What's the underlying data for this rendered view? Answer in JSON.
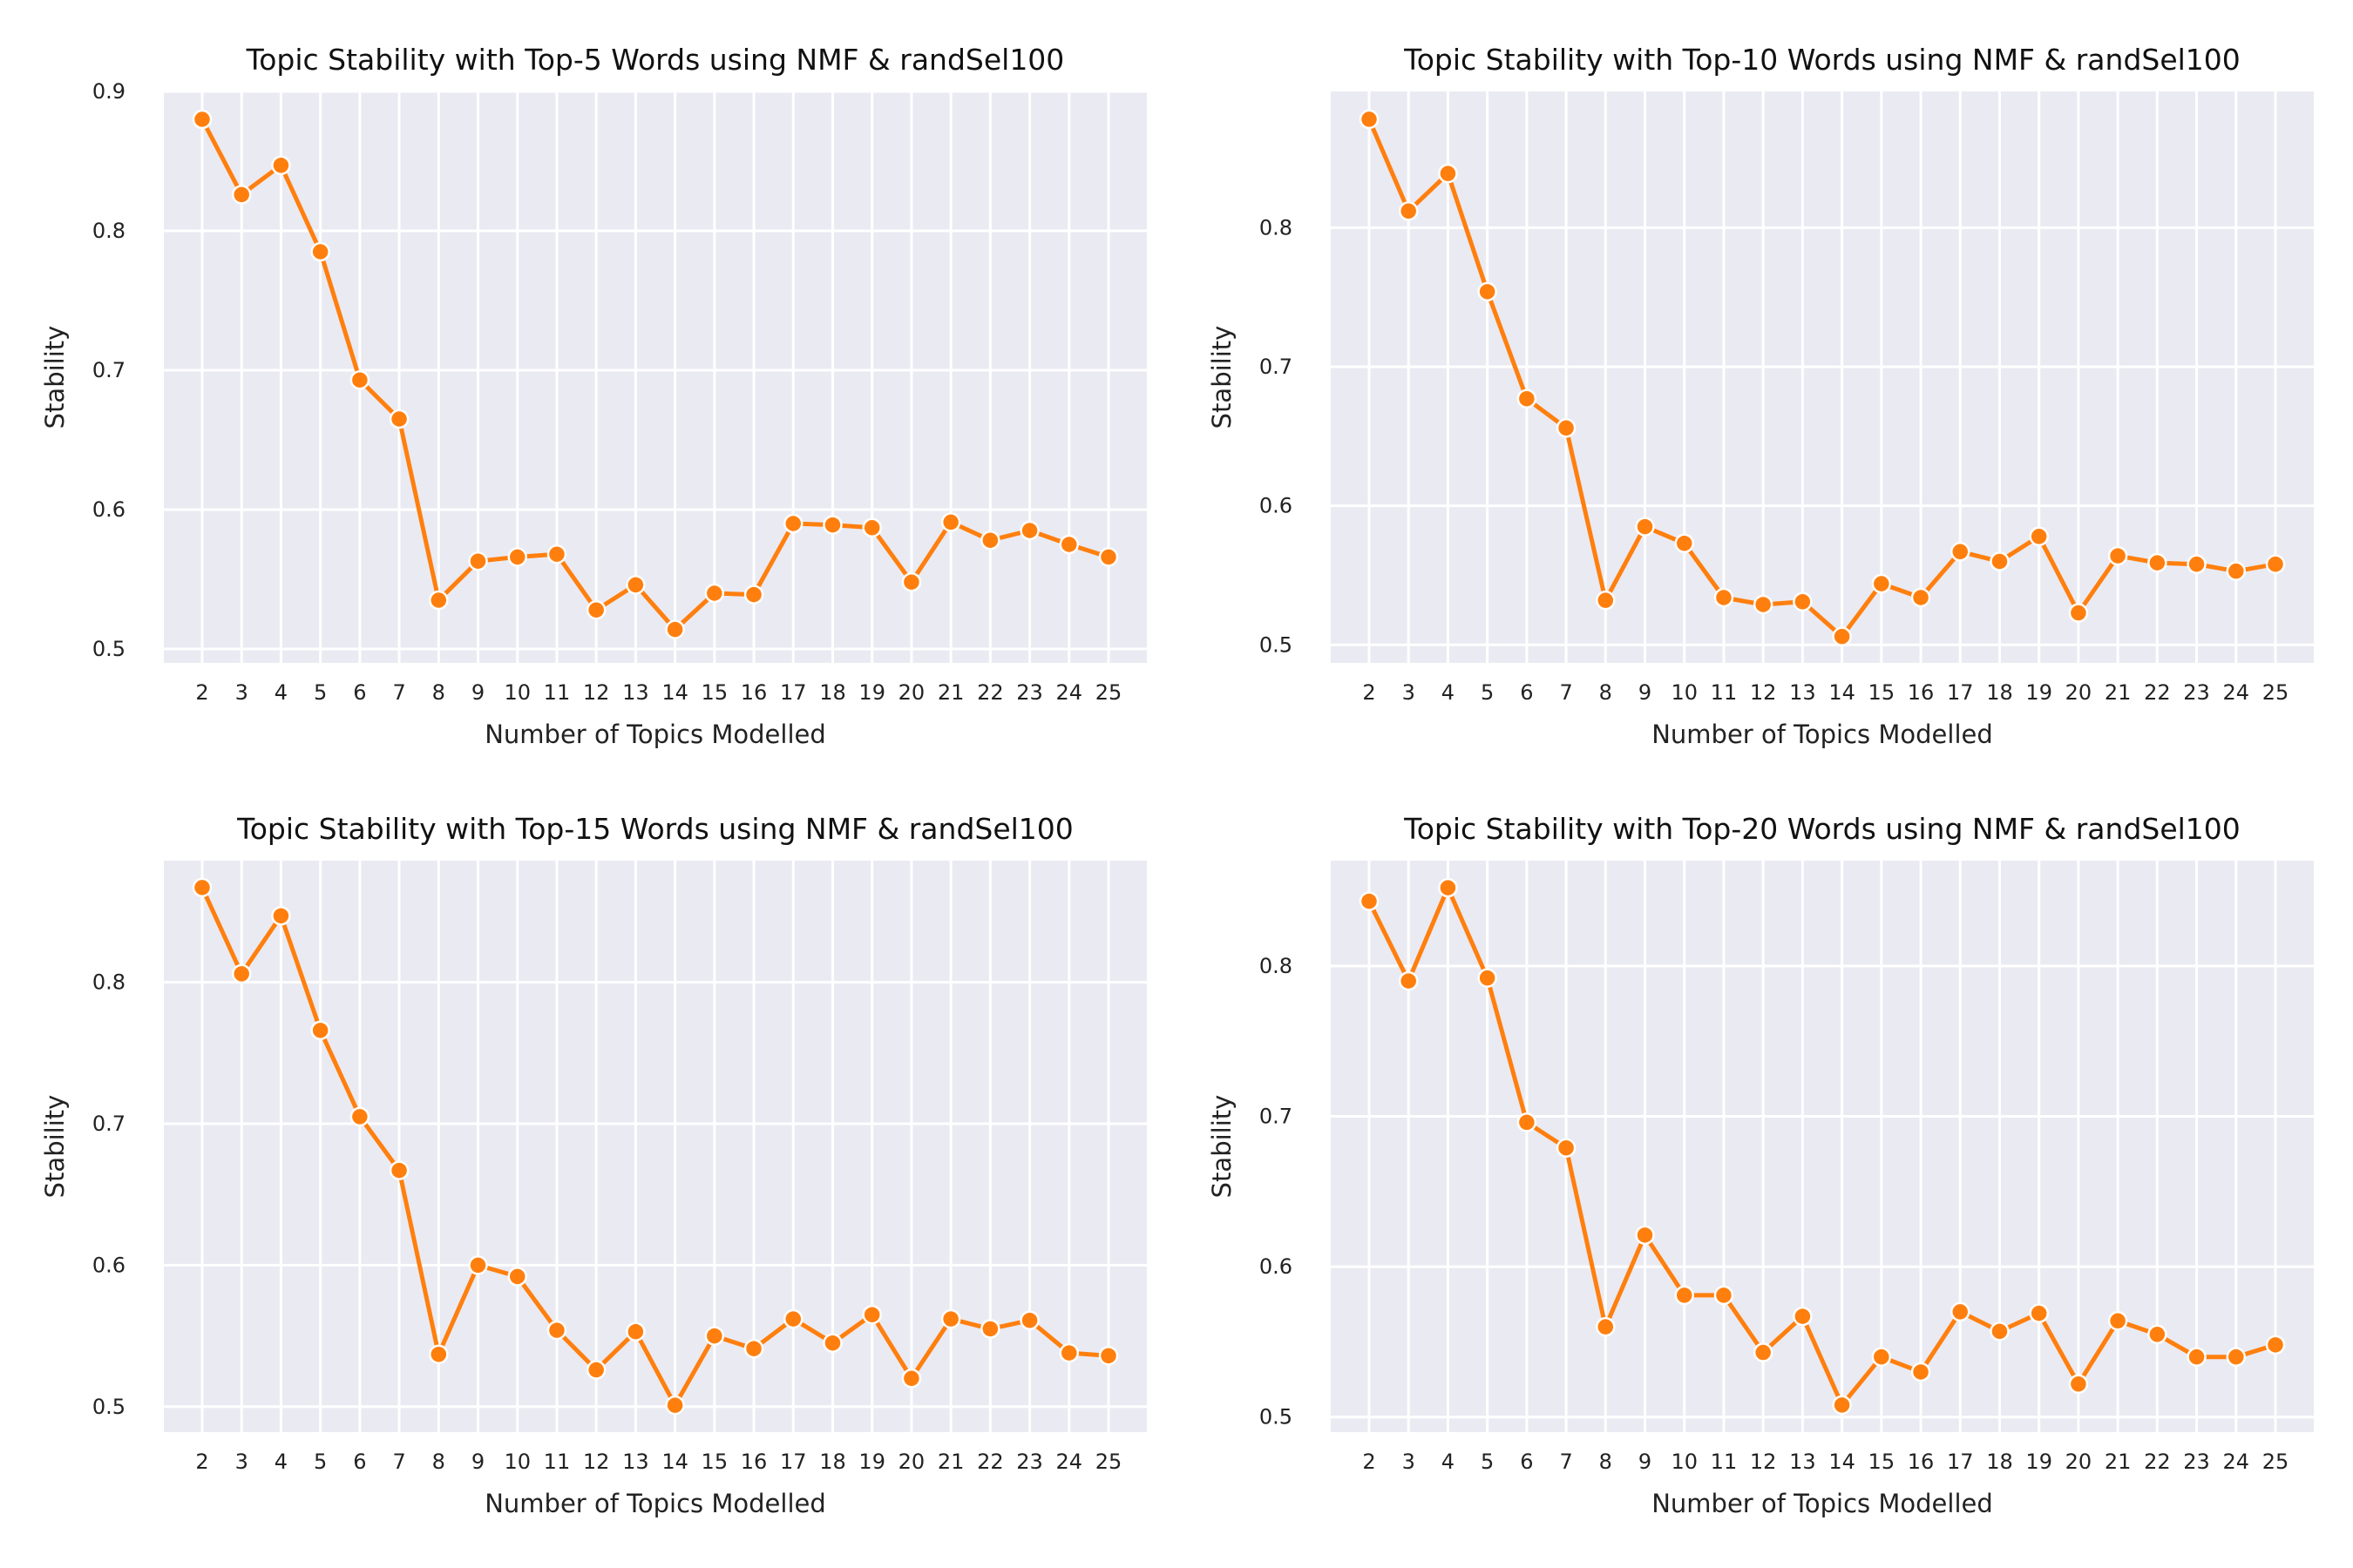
{
  "chart_data": [
    {
      "type": "line",
      "title": "Topic Stability with Top-5 Words using NMF & randSel100",
      "xlabel": "Number of Topics Modelled",
      "ylabel": "Stability",
      "x": [
        2,
        3,
        4,
        5,
        6,
        7,
        8,
        9,
        10,
        11,
        12,
        13,
        14,
        15,
        16,
        17,
        18,
        19,
        20,
        21,
        22,
        23,
        24,
        25
      ],
      "x_tick_labels": [
        "2",
        "3",
        "4",
        "5",
        "6",
        "7",
        "8",
        "9",
        "10",
        "11",
        "12",
        "13",
        "14",
        "15",
        "16",
        "17",
        "18",
        "19",
        "20",
        "21",
        "22",
        "23",
        "24",
        "25"
      ],
      "ylim": [
        0.49,
        0.9
      ],
      "y_ticks": [
        0.5,
        0.6,
        0.7,
        0.8,
        0.9
      ],
      "y_tick_labels": [
        "0.5",
        "0.6",
        "0.7",
        "0.8",
        "0.9"
      ],
      "series": [
        {
          "values": [
            0.88,
            0.826,
            0.847,
            0.785,
            0.693,
            0.665,
            0.535,
            0.563,
            0.566,
            0.568,
            0.528,
            0.546,
            0.514,
            0.54,
            0.539,
            0.59,
            0.589,
            0.587,
            0.548,
            0.591,
            0.578,
            0.585,
            0.575,
            0.566
          ]
        }
      ],
      "color": "#ff7f0e",
      "grid": true,
      "legend": "none"
    },
    {
      "type": "line",
      "title": "Topic Stability with Top-10 Words using NMF & randSel100",
      "xlabel": "Number of Topics Modelled",
      "ylabel": "Stability",
      "x": [
        2,
        3,
        4,
        5,
        6,
        7,
        8,
        9,
        10,
        11,
        12,
        13,
        14,
        15,
        16,
        17,
        18,
        19,
        20,
        21,
        22,
        23,
        24,
        25
      ],
      "x_tick_labels": [
        "2",
        "3",
        "4",
        "5",
        "6",
        "7",
        "8",
        "9",
        "10",
        "11",
        "12",
        "13",
        "14",
        "15",
        "16",
        "17",
        "18",
        "19",
        "20",
        "21",
        "22",
        "23",
        "24",
        "25"
      ],
      "ylim": [
        0.487,
        0.898
      ],
      "y_ticks": [
        0.5,
        0.6,
        0.7,
        0.8
      ],
      "y_tick_labels": [
        "0.5",
        "0.6",
        "0.7",
        "0.8"
      ],
      "series": [
        {
          "values": [
            0.878,
            0.812,
            0.839,
            0.754,
            0.677,
            0.656,
            0.532,
            0.585,
            0.573,
            0.534,
            0.529,
            0.531,
            0.506,
            0.544,
            0.534,
            0.567,
            0.56,
            0.578,
            0.523,
            0.564,
            0.559,
            0.558,
            0.553,
            0.558
          ]
        }
      ],
      "color": "#ff7f0e",
      "grid": true,
      "legend": "none"
    },
    {
      "type": "line",
      "title": "Topic Stability with Top-15 Words using NMF & randSel100",
      "xlabel": "Number of Topics Modelled",
      "ylabel": "Stability",
      "x": [
        2,
        3,
        4,
        5,
        6,
        7,
        8,
        9,
        10,
        11,
        12,
        13,
        14,
        15,
        16,
        17,
        18,
        19,
        20,
        21,
        22,
        23,
        24,
        25
      ],
      "x_tick_labels": [
        "2",
        "3",
        "4",
        "5",
        "6",
        "7",
        "8",
        "9",
        "10",
        "11",
        "12",
        "13",
        "14",
        "15",
        "16",
        "17",
        "18",
        "19",
        "20",
        "21",
        "22",
        "23",
        "24",
        "25"
      ],
      "ylim": [
        0.482,
        0.886
      ],
      "y_ticks": [
        0.5,
        0.6,
        0.7,
        0.8
      ],
      "y_tick_labels": [
        "0.5",
        "0.6",
        "0.7",
        "0.8"
      ],
      "series": [
        {
          "values": [
            0.867,
            0.806,
            0.847,
            0.766,
            0.705,
            0.667,
            0.537,
            0.6,
            0.592,
            0.554,
            0.526,
            0.553,
            0.501,
            0.55,
            0.541,
            0.562,
            0.545,
            0.565,
            0.52,
            0.562,
            0.555,
            0.561,
            0.538,
            0.536
          ]
        }
      ],
      "color": "#ff7f0e",
      "grid": true,
      "legend": "none"
    },
    {
      "type": "line",
      "title": "Topic Stability with Top-20 Words using NMF & randSel100",
      "xlabel": "Number of Topics Modelled",
      "ylabel": "Stability",
      "x": [
        2,
        3,
        4,
        5,
        6,
        7,
        8,
        9,
        10,
        11,
        12,
        13,
        14,
        15,
        16,
        17,
        18,
        19,
        20,
        21,
        22,
        23,
        24,
        25
      ],
      "x_tick_labels": [
        "2",
        "3",
        "4",
        "5",
        "6",
        "7",
        "8",
        "9",
        "10",
        "11",
        "12",
        "13",
        "14",
        "15",
        "16",
        "17",
        "18",
        "19",
        "20",
        "21",
        "22",
        "23",
        "24",
        "25"
      ],
      "ylim": [
        0.49,
        0.87
      ],
      "y_ticks": [
        0.5,
        0.6,
        0.7,
        0.8
      ],
      "y_tick_labels": [
        "0.5",
        "0.6",
        "0.7",
        "0.8"
      ],
      "series": [
        {
          "values": [
            0.843,
            0.79,
            0.852,
            0.792,
            0.696,
            0.679,
            0.56,
            0.621,
            0.581,
            0.581,
            0.543,
            0.567,
            0.508,
            0.54,
            0.53,
            0.57,
            0.557,
            0.569,
            0.522,
            0.564,
            0.555,
            0.54,
            0.54,
            0.548
          ]
        }
      ],
      "color": "#ff7f0e",
      "grid": true,
      "legend": "none"
    }
  ]
}
